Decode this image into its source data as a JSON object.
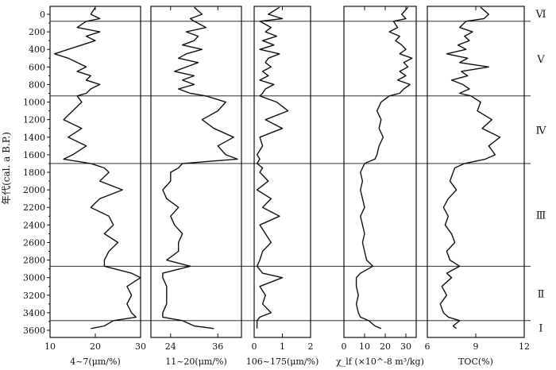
{
  "y_axis_label": "年代(cal. a B.P.)",
  "zone_labels": [
    "Ⅵ",
    "Ⅴ",
    "Ⅳ",
    "Ⅲ",
    "Ⅱ",
    "Ⅰ"
  ],
  "chart_data": {
    "type": "line",
    "orientation": "depth-profile",
    "y_axis": {
      "label": "年代(cal. a B.P.)",
      "range": [
        0,
        3600
      ],
      "inverted": true,
      "ticks": [
        0,
        200,
        400,
        600,
        800,
        1000,
        1200,
        1400,
        1600,
        1800,
        2000,
        2200,
        2400,
        2600,
        2800,
        3000,
        3200,
        3400,
        3600
      ]
    },
    "zone_boundaries": [
      80,
      930,
      1700,
      2870,
      3490
    ],
    "zones": [
      {
        "label": "Ⅵ",
        "from": -100,
        "to": 80
      },
      {
        "label": "Ⅴ",
        "from": 80,
        "to": 930
      },
      {
        "label": "Ⅳ",
        "from": 930,
        "to": 1700
      },
      {
        "label": "Ⅲ",
        "from": 1700,
        "to": 2870
      },
      {
        "label": "Ⅱ",
        "from": 2870,
        "to": 3490
      },
      {
        "label": "Ⅰ",
        "from": 3490,
        "to": 3650
      }
    ],
    "panels": [
      {
        "xlabel": "4~7(μm/%)",
        "xlim": [
          10,
          30
        ],
        "xticks": [
          10,
          20,
          30
        ],
        "age": [
          -80,
          0,
          50,
          80,
          150,
          200,
          250,
          300,
          350,
          400,
          450,
          500,
          550,
          600,
          650,
          700,
          750,
          800,
          850,
          900,
          930,
          1000,
          1100,
          1200,
          1300,
          1400,
          1500,
          1600,
          1650,
          1700,
          1750,
          1800,
          1900,
          2000,
          2100,
          2200,
          2300,
          2400,
          2500,
          2600,
          2700,
          2800,
          2870,
          2950,
          3000,
          3100,
          3200,
          3300,
          3400,
          3450,
          3490,
          3550,
          3580
        ],
        "values": [
          20,
          19,
          21,
          18,
          16,
          21,
          18,
          20,
          17,
          14,
          11,
          14,
          16,
          18,
          16,
          19,
          18,
          21,
          19,
          18,
          16,
          17,
          15,
          13,
          17,
          14,
          18,
          15,
          13,
          19,
          22,
          23,
          21,
          26,
          21,
          19,
          23,
          24,
          22,
          25,
          23,
          22,
          22,
          28,
          30,
          27,
          28,
          27,
          28,
          29,
          24,
          22,
          19
        ]
      },
      {
        "xlabel": "11~20(μm/%)",
        "xlim": [
          19,
          42
        ],
        "xticks": [
          24,
          36
        ],
        "age": [
          -80,
          0,
          50,
          80,
          150,
          200,
          250,
          300,
          350,
          400,
          450,
          500,
          550,
          600,
          650,
          700,
          750,
          800,
          850,
          900,
          930,
          1000,
          1100,
          1200,
          1300,
          1400,
          1500,
          1600,
          1650,
          1700,
          1750,
          1800,
          1900,
          2000,
          2100,
          2200,
          2300,
          2400,
          2500,
          2600,
          2700,
          2800,
          2870,
          2950,
          3000,
          3100,
          3200,
          3300,
          3400,
          3450,
          3490,
          3550,
          3580
        ],
        "values": [
          30,
          32,
          29,
          30,
          33,
          28,
          31,
          30,
          27,
          32,
          28,
          26,
          31,
          28,
          25,
          30,
          27,
          30,
          26,
          29,
          33,
          38,
          36,
          32,
          35,
          40,
          36,
          38,
          41,
          27,
          26,
          24,
          24,
          22,
          23,
          26,
          24,
          25,
          27,
          26,
          26,
          23,
          29,
          22,
          22,
          23,
          23,
          23,
          22,
          22,
          27,
          30,
          35
        ]
      },
      {
        "xlabel": "106~175(μm/%)",
        "xlim": [
          0,
          2
        ],
        "xticks": [
          0,
          1,
          2
        ],
        "age": [
          -80,
          0,
          50,
          80,
          150,
          200,
          250,
          300,
          350,
          400,
          450,
          500,
          550,
          600,
          650,
          700,
          750,
          800,
          850,
          900,
          930,
          1000,
          1100,
          1200,
          1300,
          1400,
          1500,
          1600,
          1650,
          1700,
          1750,
          1800,
          1900,
          2000,
          2100,
          2200,
          2300,
          2400,
          2500,
          2600,
          2700,
          2800,
          2870,
          2950,
          3000,
          3100,
          3200,
          3300,
          3400,
          3450,
          3490,
          3550,
          3580
        ],
        "values": [
          0.9,
          0.5,
          1.0,
          0.2,
          0.6,
          0.4,
          0.8,
          0.3,
          0.7,
          0.2,
          0.9,
          0.5,
          0.4,
          0.6,
          0.3,
          0.5,
          0.2,
          0.7,
          0.4,
          0.3,
          0.2,
          0.8,
          1.2,
          0.4,
          1.0,
          0.2,
          0.3,
          0.1,
          0.2,
          0.1,
          0.3,
          0.2,
          0.5,
          0.1,
          0.6,
          0.3,
          0.9,
          0.2,
          0.4,
          0.6,
          0.3,
          0.2,
          0.1,
          0.3,
          1.0,
          0.2,
          0.4,
          0.3,
          0.6,
          0.2,
          0.1,
          0.1,
          0.1
        ]
      },
      {
        "xlabel": "χ_lf (×10^-8 m³/kg)",
        "xlim": [
          0,
          35
        ],
        "xticks": [
          0,
          10,
          20,
          30
        ],
        "age": [
          -80,
          0,
          50,
          80,
          150,
          200,
          250,
          300,
          350,
          400,
          450,
          500,
          550,
          600,
          650,
          700,
          750,
          800,
          850,
          900,
          930,
          1000,
          1100,
          1200,
          1300,
          1400,
          1500,
          1600,
          1650,
          1700,
          1750,
          1800,
          1900,
          2000,
          2100,
          2200,
          2300,
          2400,
          2500,
          2600,
          2700,
          2800,
          2870,
          2950,
          3000,
          3100,
          3200,
          3300,
          3400,
          3450,
          3490,
          3550,
          3580
        ],
        "values": [
          31,
          28,
          30,
          24,
          26,
          22,
          27,
          25,
          28,
          30,
          27,
          33,
          29,
          31,
          27,
          30,
          26,
          32,
          29,
          27,
          22,
          18,
          16,
          18,
          17,
          19,
          17,
          16,
          15,
          10,
          9,
          8,
          9,
          8,
          9,
          10,
          8,
          9,
          10,
          9,
          10,
          11,
          14,
          8,
          6,
          6,
          7,
          6,
          7,
          8,
          12,
          15,
          18
        ]
      },
      {
        "xlabel": "TOC(%)",
        "xlim": [
          6,
          12
        ],
        "xticks": [
          6,
          9,
          12
        ],
        "age": [
          -80,
          0,
          50,
          80,
          150,
          200,
          250,
          300,
          350,
          400,
          450,
          500,
          550,
          600,
          650,
          700,
          750,
          800,
          850,
          900,
          930,
          1000,
          1100,
          1200,
          1300,
          1400,
          1500,
          1600,
          1650,
          1700,
          1750,
          1800,
          1900,
          2000,
          2100,
          2200,
          2300,
          2400,
          2500,
          2600,
          2700,
          2800,
          2870,
          2950,
          3000,
          3100,
          3200,
          3300,
          3400,
          3450,
          3490,
          3550,
          3580
        ],
        "values": [
          9.3,
          9.8,
          9.5,
          8.4,
          8.0,
          8.8,
          8.3,
          8.6,
          7.9,
          8.4,
          7.2,
          8.5,
          8.0,
          9.8,
          8.1,
          8.5,
          7.5,
          8.2,
          8.6,
          8.0,
          8.7,
          9.3,
          9.1,
          10.0,
          9.4,
          10.5,
          9.8,
          10.2,
          9.6,
          8.3,
          7.7,
          7.6,
          7.4,
          7.8,
          7.3,
          7.0,
          7.3,
          7.1,
          7.5,
          7.7,
          7.2,
          7.4,
          8.0,
          7.2,
          7.5,
          6.9,
          7.2,
          6.8,
          7.0,
          7.3,
          8.0,
          7.6,
          7.8
        ]
      }
    ]
  }
}
